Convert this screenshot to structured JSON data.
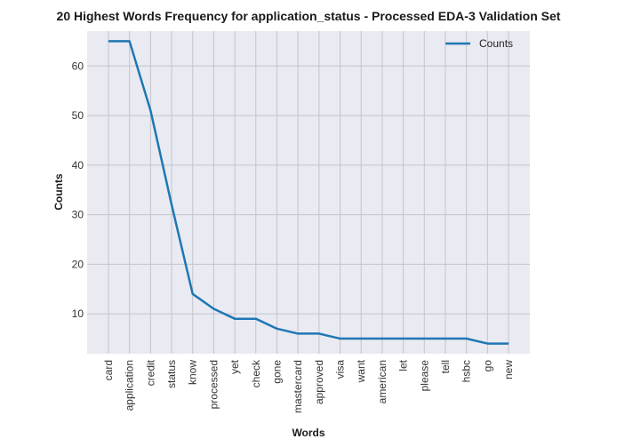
{
  "chart_data": {
    "type": "line",
    "title": "20 Highest Words Frequency for application_status - Processed EDA-3 Validation Set",
    "xlabel": "Words",
    "ylabel": "Counts",
    "categories": [
      "card",
      "application",
      "credit",
      "status",
      "know",
      "processed",
      "yet",
      "check",
      "gone",
      "mastercard",
      "approved",
      "visa",
      "want",
      "american",
      "let",
      "please",
      "tell",
      "hsbc",
      "go",
      "new"
    ],
    "series": [
      {
        "name": "Counts",
        "values": [
          65,
          65,
          51,
          32,
          14,
          11,
          9,
          9,
          7,
          6,
          6,
          5,
          5,
          5,
          5,
          5,
          5,
          5,
          4,
          4
        ]
      }
    ],
    "ylim": [
      1.95,
      67.05
    ],
    "yticks": [
      10,
      20,
      30,
      40,
      50,
      60
    ],
    "grid": true,
    "legend": "top-right",
    "colors": {
      "line": "#1f77b4",
      "plot_bg": "#eaeaf2",
      "grid": "#c4c4cc"
    }
  }
}
